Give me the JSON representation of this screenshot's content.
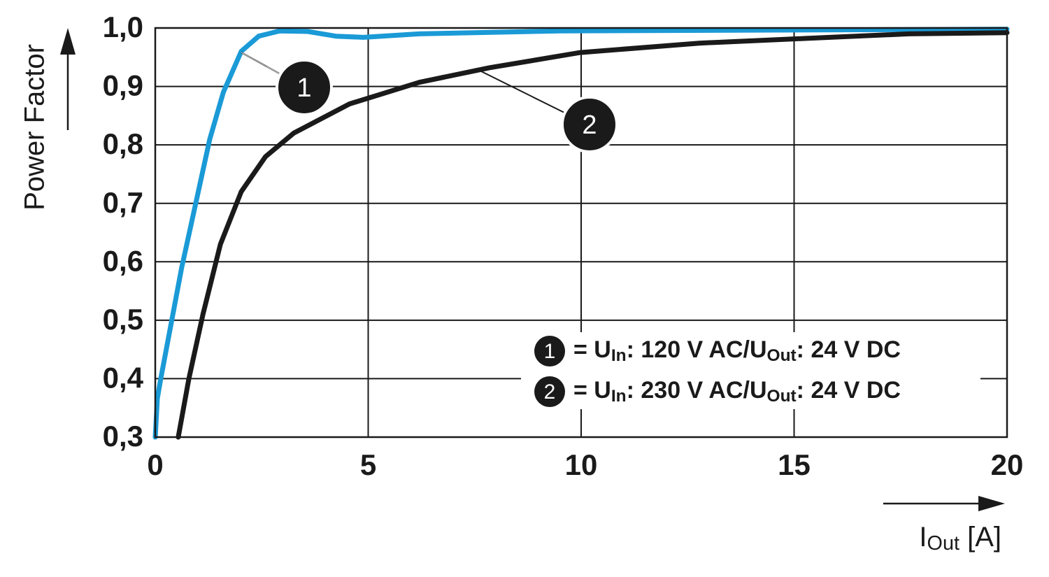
{
  "chart_data": {
    "type": "line",
    "y_label": "Power Factor",
    "x_label": [
      "I",
      "Out",
      " [A]"
    ],
    "xlim": [
      0,
      20
    ],
    "xticks": [
      0,
      5,
      10,
      15,
      20
    ],
    "ylim": [
      0.3,
      1.0
    ],
    "yticks": [
      {
        "value": 0.3,
        "label": "0,3"
      },
      {
        "value": 0.4,
        "label": "0,4"
      },
      {
        "value": 0.5,
        "label": "0,5"
      },
      {
        "value": 0.6,
        "label": "0,6"
      },
      {
        "value": 0.7,
        "label": "0,7"
      },
      {
        "value": 0.8,
        "label": "0,8"
      },
      {
        "value": 0.9,
        "label": "0,9"
      },
      {
        "value": 1.0,
        "label": "1,0"
      }
    ],
    "grid": true,
    "legend": "lower right",
    "series": [
      {
        "label": "1",
        "name": [
          "= U",
          "In",
          ": 120 V AC/U",
          "Out",
          ": 24 V DC"
        ],
        "color": "#1a9ad6",
        "x": [
          0,
          0.05,
          0.13,
          0.62,
          0.95,
          1.28,
          1.6,
          2.02,
          2.43,
          2.92,
          3.58,
          4.24,
          4.89,
          6.2,
          9.5,
          20
        ],
        "values": [
          0.3,
          0.366,
          0.4,
          0.59,
          0.7,
          0.81,
          0.89,
          0.96,
          0.986,
          0.995,
          0.994,
          0.986,
          0.984,
          0.99,
          0.995,
          0.998
        ]
      },
      {
        "label": "2",
        "name": [
          "= U",
          "In",
          ": 230 V AC/U",
          "Out",
          ": 24 V DC"
        ],
        "color": "#1a1a1a",
        "x": [
          0.54,
          0.79,
          1.12,
          1.53,
          2.02,
          2.59,
          3.25,
          4.56,
          6.2,
          7.85,
          9.98,
          12.77,
          15.24,
          17.7,
          20
        ],
        "values": [
          0.3,
          0.4,
          0.51,
          0.63,
          0.72,
          0.78,
          0.82,
          0.87,
          0.907,
          0.932,
          0.958,
          0.974,
          0.982,
          0.99,
          0.992
        ]
      }
    ]
  }
}
